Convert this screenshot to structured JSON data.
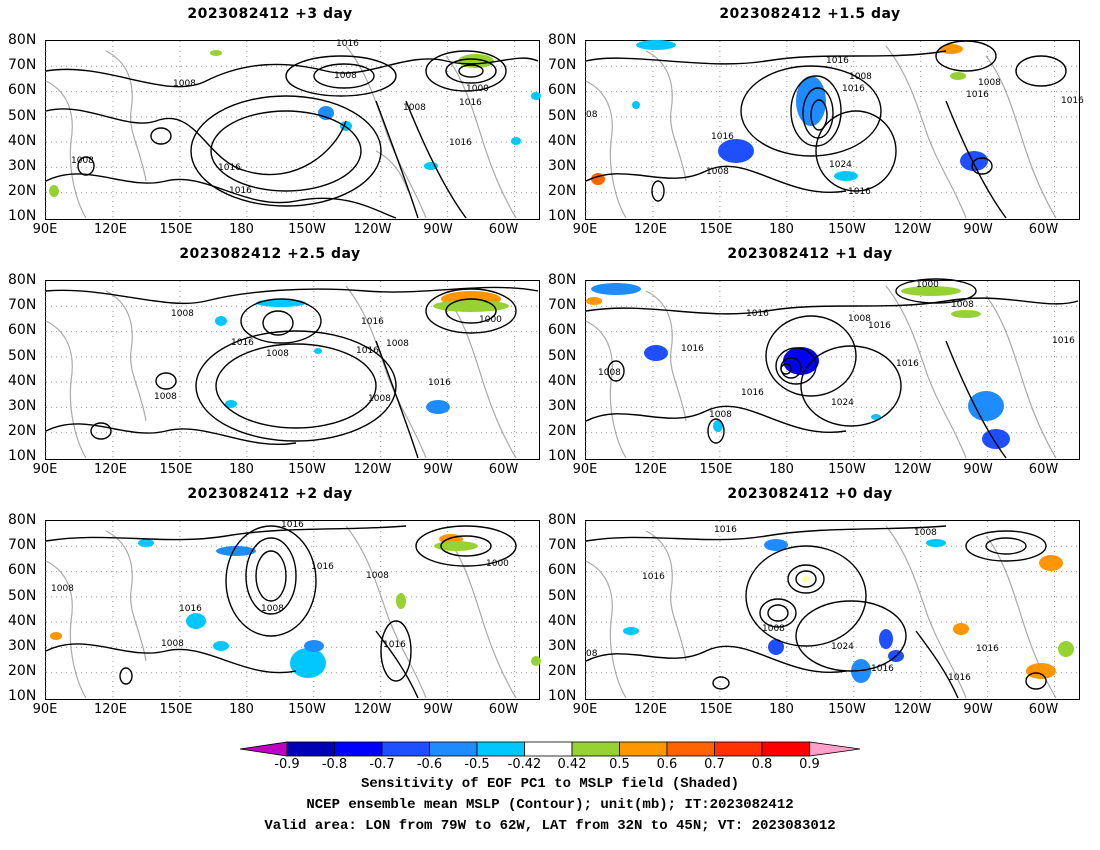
{
  "panels": [
    {
      "title": "2023082412 +3 day"
    },
    {
      "title": "2023082412 +1.5 day"
    },
    {
      "title": "2023082412 +2.5 day"
    },
    {
      "title": "2023082412 +1 day"
    },
    {
      "title": "2023082412 +2 day"
    },
    {
      "title": "2023082412 +0 day"
    }
  ],
  "lat_labels": [
    "80N",
    "70N",
    "60N",
    "50N",
    "40N",
    "30N",
    "20N",
    "10N"
  ],
  "lon_labels": [
    "90E",
    "120E",
    "150E",
    "180",
    "150W",
    "120W",
    "90W",
    "60W"
  ],
  "contour_labels": {
    "p0": [
      {
        "t": "1016"
      },
      {
        "t": "1008"
      },
      {
        "t": "1008"
      },
      {
        "t": "1000"
      },
      {
        "t": "1008"
      },
      {
        "t": "1016"
      },
      {
        "t": "1016"
      },
      {
        "t": "1008"
      },
      {
        "t": "1016"
      },
      {
        "t": "1016"
      }
    ],
    "p1": [
      {
        "t": "1016"
      },
      {
        "t": "1008"
      },
      {
        "t": "1016"
      },
      {
        "t": "1008"
      },
      {
        "t": "1016"
      },
      {
        "t": "1016"
      },
      {
        "t": "08"
      },
      {
        "t": "1016"
      },
      {
        "t": "1008"
      },
      {
        "t": "1024"
      },
      {
        "t": "1016"
      }
    ],
    "p2": [
      {
        "t": "1008"
      },
      {
        "t": "1016"
      },
      {
        "t": "1016"
      },
      {
        "t": "1008"
      },
      {
        "t": "1016"
      },
      {
        "t": "1008"
      },
      {
        "t": "1000"
      },
      {
        "t": "1016"
      },
      {
        "t": "1008"
      },
      {
        "t": "1008"
      }
    ],
    "p3": [
      {
        "t": "1000"
      },
      {
        "t": "1008"
      },
      {
        "t": "1016"
      },
      {
        "t": "1008"
      },
      {
        "t": "1016"
      },
      {
        "t": "1016"
      },
      {
        "t": "1016"
      },
      {
        "t": "1008"
      },
      {
        "t": "1016"
      },
      {
        "t": "1016"
      },
      {
        "t": "1024"
      },
      {
        "t": "1008"
      }
    ],
    "p4": [
      {
        "t": "1016"
      },
      {
        "t": "1016"
      },
      {
        "t": "1008"
      },
      {
        "t": "1000"
      },
      {
        "t": "1008"
      },
      {
        "t": "1008"
      },
      {
        "t": "1016"
      },
      {
        "t": "1008"
      },
      {
        "t": "1016"
      }
    ],
    "p5": [
      {
        "t": "1016"
      },
      {
        "t": "1008"
      },
      {
        "t": "1016"
      },
      {
        "t": "1008"
      },
      {
        "t": "1024"
      },
      {
        "t": "1016"
      },
      {
        "t": "1016"
      },
      {
        "t": "08"
      },
      {
        "t": "1016"
      }
    ]
  },
  "colorbar": {
    "labels": [
      "-0.9",
      "-0.8",
      "-0.7",
      "-0.6",
      "-0.5",
      "-0.42",
      "0.42",
      "0.5",
      "0.6",
      "0.7",
      "0.8",
      "0.9"
    ],
    "left_arrow_color": "#c000c0",
    "right_arrow_color": "#ffa0c8",
    "colors": [
      "#0000b4",
      "#0000ff",
      "#1e50ff",
      "#1e8cff",
      "#00c8ff",
      "#ffffff",
      "#96d232",
      "#ff9600",
      "#ff6400",
      "#ff3200",
      "#ff0000"
    ]
  },
  "captions": [
    "Sensitivity of EOF PC1 to MSLP field (Shaded)",
    "NCEP ensemble mean MSLP (Contour); unit(mb); IT:2023082412",
    "Valid area: LON from 79W to 62W, LAT from 32N to 45N; VT: 2023083012"
  ]
}
